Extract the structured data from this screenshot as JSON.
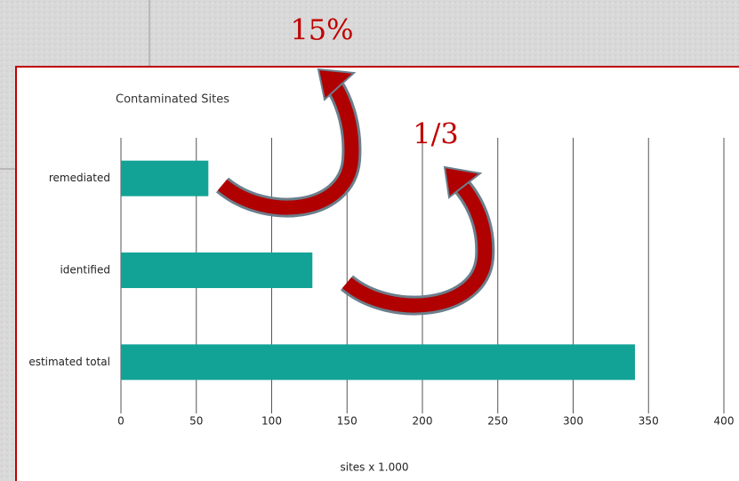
{
  "chart_data": {
    "type": "bar",
    "orientation": "horizontal",
    "title": "Contaminated Sites",
    "xlabel": "sites x 1.000",
    "categories": [
      "remediated",
      "identified",
      "estimated total"
    ],
    "values": [
      58,
      127,
      341
    ],
    "color": "#12a396",
    "xlim": [
      0,
      400
    ],
    "xticks": [
      0,
      50,
      100,
      150,
      200,
      250,
      300,
      350,
      400
    ],
    "grid": true,
    "annotations": [
      "15%",
      "1/3"
    ]
  }
}
